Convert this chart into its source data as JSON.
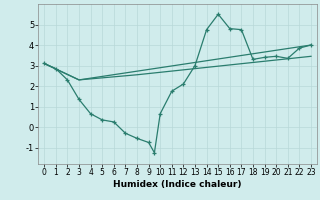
{
  "line1_x": [
    0,
    1,
    2,
    3,
    4,
    5,
    6,
    7,
    8,
    9,
    9.5,
    10,
    11,
    12,
    13,
    14,
    15,
    16,
    17,
    18,
    19,
    20,
    21,
    22,
    23
  ],
  "line1_y": [
    3.1,
    2.85,
    2.3,
    1.35,
    0.65,
    0.35,
    0.25,
    -0.3,
    -0.55,
    -0.75,
    -1.25,
    0.65,
    1.75,
    2.1,
    3.0,
    4.75,
    5.5,
    4.8,
    4.75,
    3.3,
    3.4,
    3.45,
    3.35,
    3.85,
    4.0
  ],
  "line2_x": [
    0,
    3,
    13,
    23
  ],
  "line2_y": [
    3.1,
    2.3,
    3.15,
    4.0
  ],
  "line3_x": [
    0,
    3,
    8,
    13,
    18,
    23
  ],
  "line3_y": [
    3.1,
    2.3,
    2.55,
    2.85,
    3.15,
    3.45
  ],
  "color": "#2a7d6e",
  "bg_color": "#d0ecec",
  "grid_color": "#b8d8d8",
  "xlabel": "Humidex (Indice chaleur)",
  "xlim": [
    -0.5,
    23.5
  ],
  "ylim": [
    -1.8,
    6.0
  ],
  "yticks": [
    -1,
    0,
    1,
    2,
    3,
    4,
    5
  ],
  "xticks": [
    0,
    1,
    2,
    3,
    4,
    5,
    6,
    7,
    8,
    9,
    10,
    11,
    12,
    13,
    14,
    15,
    16,
    17,
    18,
    19,
    20,
    21,
    22,
    23
  ],
  "tick_fontsize": 5.5,
  "xlabel_fontsize": 6.5
}
